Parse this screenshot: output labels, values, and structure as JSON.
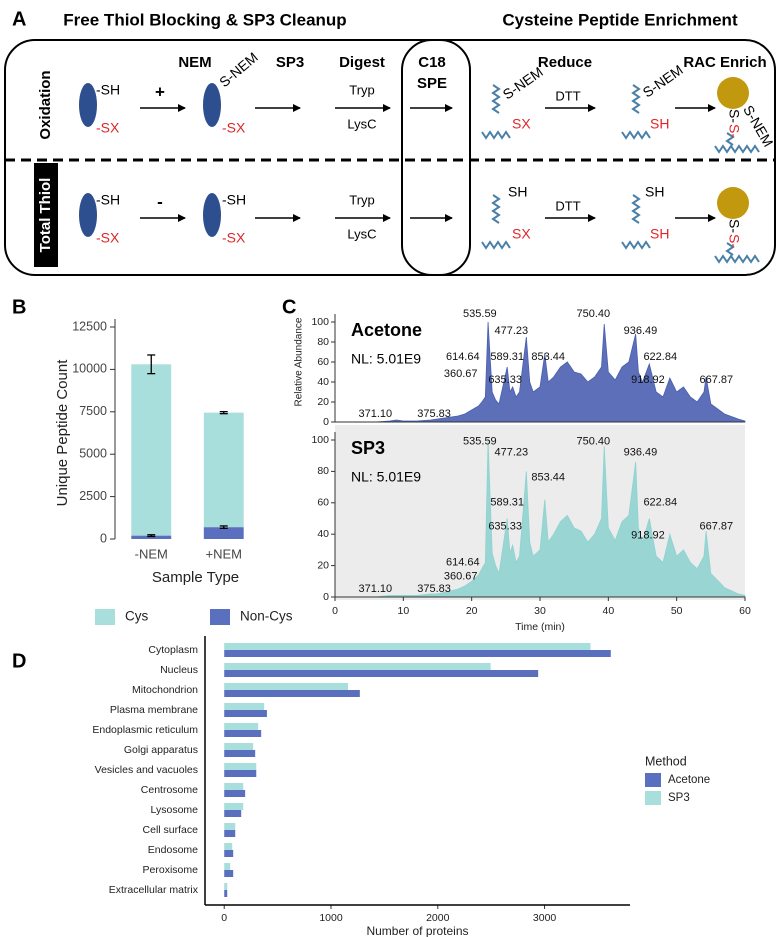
{
  "panel_labels": [
    "A",
    "B",
    "C",
    "D"
  ],
  "diagram": {
    "sections": [
      "Free Thiol Blocking & SP3 Cleanup",
      "Cysteine Peptide Enrichment"
    ],
    "steps": [
      "NEM",
      "SP3",
      "Digest",
      "C18",
      "SPE",
      "Reduce",
      "RAC Enrich"
    ],
    "rows": [
      {
        "name": "Oxidation",
        "sign": "+",
        "protein": [
          "-SH",
          "-SX"
        ],
        "blocked": [
          "S-NEM",
          "-SX"
        ],
        "enzymes": [
          "Tryp",
          "LysC"
        ],
        "peptide": [
          "S-NEM",
          "SX"
        ],
        "reagent": "DTT",
        "reduced": [
          "S-NEM",
          "SH"
        ],
        "enriched": [
          "S-",
          "S-",
          "S-NEM"
        ]
      },
      {
        "name": "Total Thiol",
        "sign": "-",
        "protein": [
          "-SH",
          "-SX"
        ],
        "blocked": [
          "-SH",
          "-SX"
        ],
        "enzymes": [
          "Tryp",
          "LysC"
        ],
        "peptide": [
          "SH",
          "SX"
        ],
        "reagent": "DTT",
        "reduced": [
          "SH",
          "SH"
        ],
        "enriched": [
          "S-",
          "S-"
        ]
      }
    ]
  },
  "chart_data": [
    {
      "type": "stacked_bar",
      "y_label": "Unique Peptide Count",
      "x_label": "Sample Type",
      "categories": [
        "-NEM",
        "+NEM"
      ],
      "series": [
        {
          "name": "Cys",
          "color": "#a8dedb",
          "values": [
            10100,
            6750
          ],
          "errors": [
            550,
            60
          ]
        },
        {
          "name": "Non-Cys",
          "color": "#5b6fbf",
          "values": [
            200,
            700
          ],
          "errors": [
            50,
            70
          ]
        }
      ],
      "ylim": [
        0,
        12500
      ],
      "yticks": [
        0,
        2500,
        5000,
        7500,
        10000,
        12500
      ],
      "legend": "bottom"
    },
    {
      "type": "area",
      "title": "Acetone",
      "subtitle": "NL: 5.01E9",
      "y_label": "Relative Abundance",
      "color": "#4a5fb0",
      "x": [
        0,
        2,
        4,
        6,
        8,
        9,
        10,
        12,
        14,
        15,
        16,
        17,
        18,
        19,
        20,
        21,
        21.5,
        22,
        22.4,
        23,
        23.5,
        24,
        25.2,
        25.6,
        26,
        26.5,
        27,
        28,
        28.5,
        29,
        30,
        30.7,
        31.2,
        32,
        33,
        34,
        35,
        36,
        37,
        38,
        39,
        39.4,
        40,
        41,
        42,
        43,
        44,
        44.4,
        45,
        46,
        47,
        48,
        49,
        50,
        51,
        52,
        53,
        54,
        54.3,
        55,
        57,
        59,
        60
      ],
      "values": [
        0,
        0,
        0,
        0,
        1,
        2,
        1,
        1,
        2,
        3,
        4,
        5,
        6,
        8,
        12,
        16,
        20,
        25,
        100,
        30,
        22,
        18,
        55,
        30,
        35,
        25,
        30,
        85,
        40,
        30,
        35,
        68,
        40,
        45,
        55,
        60,
        50,
        48,
        40,
        45,
        55,
        98,
        50,
        42,
        55,
        60,
        88,
        50,
        40,
        58,
        30,
        25,
        44,
        30,
        35,
        25,
        20,
        30,
        45,
        18,
        8,
        3,
        1
      ],
      "xlim": [
        0,
        60
      ],
      "ylim": [
        0,
        100
      ],
      "yticks": [
        0,
        20,
        40,
        60,
        80,
        100
      ],
      "annotations": [
        {
          "text": "535.59",
          "x": 21.2,
          "y": 108
        },
        {
          "text": "477.23",
          "x": 25.8,
          "y": 91
        },
        {
          "text": "750.40",
          "x": 37.8,
          "y": 108
        },
        {
          "text": "936.49",
          "x": 44.7,
          "y": 91
        },
        {
          "text": "853.44",
          "x": 31.2,
          "y": 65
        },
        {
          "text": "622.84",
          "x": 47.6,
          "y": 65
        },
        {
          "text": "589.31",
          "x": 25.2,
          "y": 65
        },
        {
          "text": "614.64",
          "x": 18.7,
          "y": 65
        },
        {
          "text": "918.92",
          "x": 45.8,
          "y": 42
        },
        {
          "text": "635.33",
          "x": 24.9,
          "y": 42
        },
        {
          "text": "667.87",
          "x": 55.8,
          "y": 42
        },
        {
          "text": "360.67",
          "x": 18.4,
          "y": 48
        },
        {
          "text": "371.10",
          "x": 5.9,
          "y": 8
        },
        {
          "text": "375.83",
          "x": 14.5,
          "y": 8
        }
      ]
    },
    {
      "type": "area",
      "title": "SP3",
      "subtitle": "NL: 5.01E9",
      "x_label": "Time (min)",
      "color": "#8fd3d0",
      "background": "#ececec",
      "x": [
        0,
        2,
        4,
        6,
        8,
        9,
        10,
        12,
        14,
        15,
        16,
        17,
        18,
        19,
        20,
        21,
        21.5,
        22,
        22.4,
        23,
        23.5,
        24,
        25.2,
        25.6,
        26,
        26.5,
        27,
        28,
        28.5,
        29,
        30,
        30.7,
        31.2,
        32,
        33,
        34,
        35,
        36,
        37,
        38,
        39,
        39.4,
        40,
        41,
        42,
        43,
        44,
        44.4,
        45,
        46,
        47,
        48,
        49,
        50,
        51,
        52,
        53,
        54,
        54.3,
        55,
        57,
        59,
        60
      ],
      "values": [
        0,
        0,
        0,
        0,
        1,
        1,
        1,
        1,
        2,
        2,
        3,
        4,
        5,
        7,
        10,
        14,
        18,
        22,
        100,
        28,
        20,
        15,
        50,
        28,
        33,
        22,
        26,
        80,
        35,
        26,
        30,
        62,
        35,
        40,
        48,
        52,
        44,
        42,
        35,
        40,
        50,
        96,
        44,
        36,
        48,
        52,
        86,
        44,
        35,
        50,
        26,
        22,
        40,
        26,
        30,
        22,
        18,
        26,
        42,
        15,
        6,
        2,
        1
      ],
      "xlim": [
        0,
        60
      ],
      "ylim": [
        0,
        100
      ],
      "xticks": [
        0,
        10,
        20,
        30,
        40,
        50,
        60
      ],
      "yticks": [
        0,
        20,
        40,
        60,
        80,
        100
      ],
      "annotations": [
        {
          "text": "535.59",
          "x": 21.2,
          "y": 99
        },
        {
          "text": "477.23",
          "x": 25.8,
          "y": 92
        },
        {
          "text": "750.40",
          "x": 37.8,
          "y": 99
        },
        {
          "text": "936.49",
          "x": 44.7,
          "y": 92
        },
        {
          "text": "853.44",
          "x": 31.2,
          "y": 76
        },
        {
          "text": "622.84",
          "x": 47.6,
          "y": 60
        },
        {
          "text": "589.31",
          "x": 25.2,
          "y": 60
        },
        {
          "text": "614.64",
          "x": 18.7,
          "y": 22
        },
        {
          "text": "918.92",
          "x": 45.8,
          "y": 39
        },
        {
          "text": "635.33",
          "x": 24.9,
          "y": 45
        },
        {
          "text": "667.87",
          "x": 55.8,
          "y": 45
        },
        {
          "text": "360.67",
          "x": 18.4,
          "y": 13
        },
        {
          "text": "371.10",
          "x": 5.9,
          "y": 5
        },
        {
          "text": "375.83",
          "x": 14.5,
          "y": 5
        }
      ]
    },
    {
      "type": "grouped_hbar",
      "x_label": "Number of proteins",
      "categories": [
        "Cytoplasm",
        "Nucleus",
        "Mitochondrion",
        "Plasma membrane",
        "Endoplasmic reticulum",
        "Golgi apparatus",
        "Vesicles and vacuoles",
        "Centrosome",
        "Lysosome",
        "Cell surface",
        "Endosome",
        "Peroxisome",
        "Extracellular matrix"
      ],
      "series": [
        {
          "name": "Acetone",
          "color": "#5b6fbf",
          "values": [
            3620,
            2940,
            1270,
            400,
            346,
            290,
            300,
            196,
            159,
            103,
            84,
            84,
            28
          ]
        },
        {
          "name": "SP3",
          "color": "#a8dedb",
          "values": [
            3430,
            2495,
            1160,
            374,
            318,
            271,
            300,
            178,
            178,
            103,
            75,
            56,
            28
          ]
        }
      ],
      "xlim": [
        -180,
        3800
      ],
      "xticks": [
        0,
        1000,
        2000,
        3000
      ],
      "legend_title": "Method",
      "legend": "right"
    }
  ]
}
